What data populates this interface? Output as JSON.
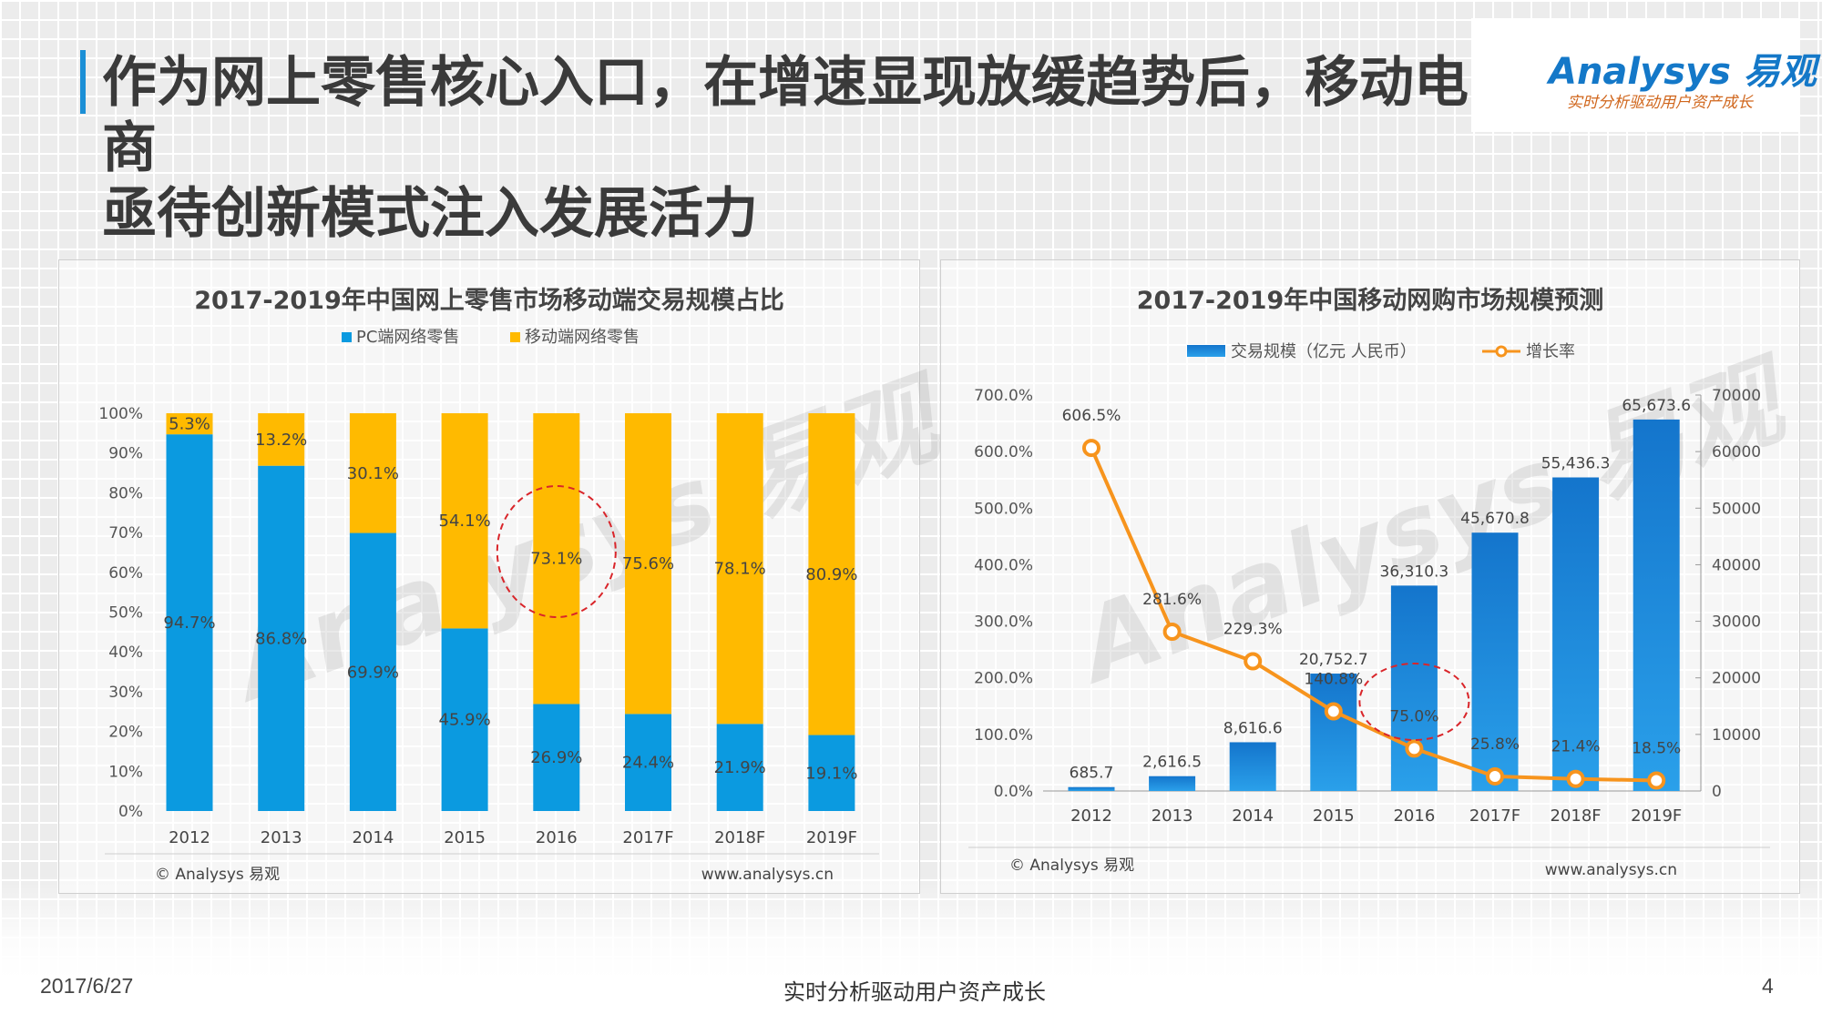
{
  "header": {
    "title_line1": "作为网上零售核心入口，在增速显现放缓趋势后，移动电商",
    "title_line2": "亟待创新模式注入发展活力"
  },
  "logo": {
    "main": "Analysys 易观",
    "sub": "实时分析驱动用户资产成长"
  },
  "footer": {
    "date": "2017/6/27",
    "slogan": "实时分析驱动用户资产成长",
    "page": "4"
  },
  "colors": {
    "blue": "#0b9ae0",
    "orange": "#ffba00",
    "line": "#f7941d",
    "bar_dark": "#1475cc",
    "bar_light": "#2aa0ea",
    "accent": "#1b8fd6"
  },
  "chart_data": [
    {
      "type": "bar",
      "stacked": true,
      "percent": true,
      "title": "2017-2019年中国网上零售市场移动端交易规模占比",
      "categories": [
        "2012",
        "2013",
        "2014",
        "2015",
        "2016",
        "2017F",
        "2018F",
        "2019F"
      ],
      "series": [
        {
          "name": "PC端网络零售",
          "values": [
            94.7,
            86.8,
            69.9,
            45.9,
            26.9,
            24.4,
            21.9,
            19.1
          ],
          "labels": [
            "94.7%",
            "86.8%",
            "69.9%",
            "45.9%",
            "26.9%",
            "24.4%",
            "21.9%",
            "19.1%"
          ]
        },
        {
          "name": "移动端网络零售",
          "values": [
            5.3,
            13.2,
            30.1,
            54.1,
            73.1,
            75.6,
            78.1,
            80.9
          ],
          "labels": [
            "5.3%",
            "13.2%",
            "30.1%",
            "54.1%",
            "73.1%",
            "75.6%",
            "78.1%",
            "80.9%"
          ]
        }
      ],
      "y_ticks": [
        "0%",
        "10%",
        "20%",
        "30%",
        "40%",
        "50%",
        "60%",
        "70%",
        "80%",
        "90%",
        "100%"
      ],
      "ylim": [
        0,
        100
      ],
      "legend": "top",
      "highlight": "2016",
      "source": "© Analysys 易观",
      "website": "www.analysys.cn"
    },
    {
      "type": "bar+line",
      "title": "2017-2019年中国移动网购市场规模预测",
      "categories": [
        "2012",
        "2013",
        "2014",
        "2015",
        "2016",
        "2017F",
        "2018F",
        "2019F"
      ],
      "series": [
        {
          "name": "交易规模（亿元 人民币）",
          "type": "bar",
          "axis": "right",
          "values": [
            685.7,
            2616.5,
            8616.6,
            20752.7,
            36310.3,
            45670.8,
            55436.3,
            65673.6
          ],
          "labels": [
            "685.7",
            "2,616.5",
            "8,616.6",
            "20,752.7",
            "36,310.3",
            "45,670.8",
            "55,436.3",
            "65,673.6"
          ]
        },
        {
          "name": "增长率",
          "type": "line",
          "axis": "left",
          "values": [
            606.5,
            281.6,
            229.3,
            140.8,
            75.0,
            25.8,
            21.4,
            18.5
          ],
          "labels": [
            "606.5%",
            "281.6%",
            "229.3%",
            "140.8%",
            "75.0%",
            "25.8%",
            "21.4%",
            "18.5%"
          ]
        }
      ],
      "y_left_ticks": [
        "0.0%",
        "100.0%",
        "200.0%",
        "300.0%",
        "400.0%",
        "500.0%",
        "600.0%",
        "700.0%"
      ],
      "y_left_lim": [
        0,
        700
      ],
      "y_right_ticks": [
        "0",
        "10000",
        "20000",
        "30000",
        "40000",
        "50000",
        "60000",
        "70000"
      ],
      "y_right_lim": [
        0,
        70000
      ],
      "legend": "top",
      "highlight": "2016",
      "source": "© Analysys 易观",
      "website": "www.analysys.cn"
    }
  ]
}
